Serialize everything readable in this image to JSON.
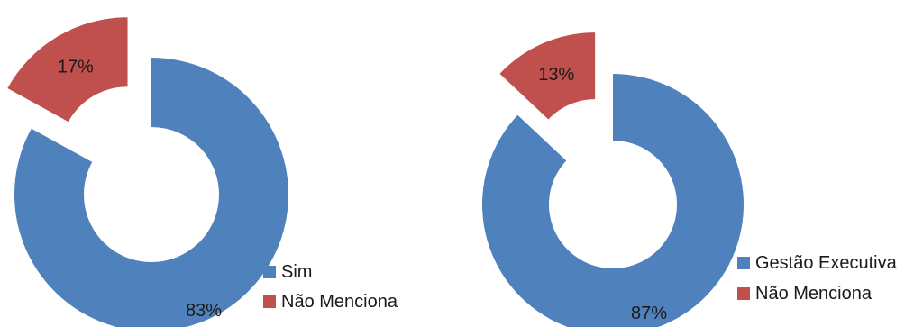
{
  "chart_data": [
    {
      "type": "pie",
      "style": "exploded-donut",
      "categories": [
        "Sim",
        "Não Menciona"
      ],
      "values": [
        83,
        17
      ],
      "value_labels": [
        "83%",
        "17%"
      ],
      "colors": [
        "#4f81bd",
        "#c0504d"
      ],
      "legend_labels": [
        "Sim",
        "Não Menciona"
      ],
      "legend_position": "bottom-right"
    },
    {
      "type": "pie",
      "style": "exploded-donut",
      "categories": [
        "Gestão Executiva",
        "Não Menciona"
      ],
      "values": [
        87,
        13
      ],
      "value_labels": [
        "87%",
        "13%"
      ],
      "colors": [
        "#4f81bd",
        "#c0504d"
      ],
      "legend_labels": [
        "Gestão Executiva",
        "Não Menciona"
      ],
      "legend_position": "bottom-right"
    }
  ]
}
